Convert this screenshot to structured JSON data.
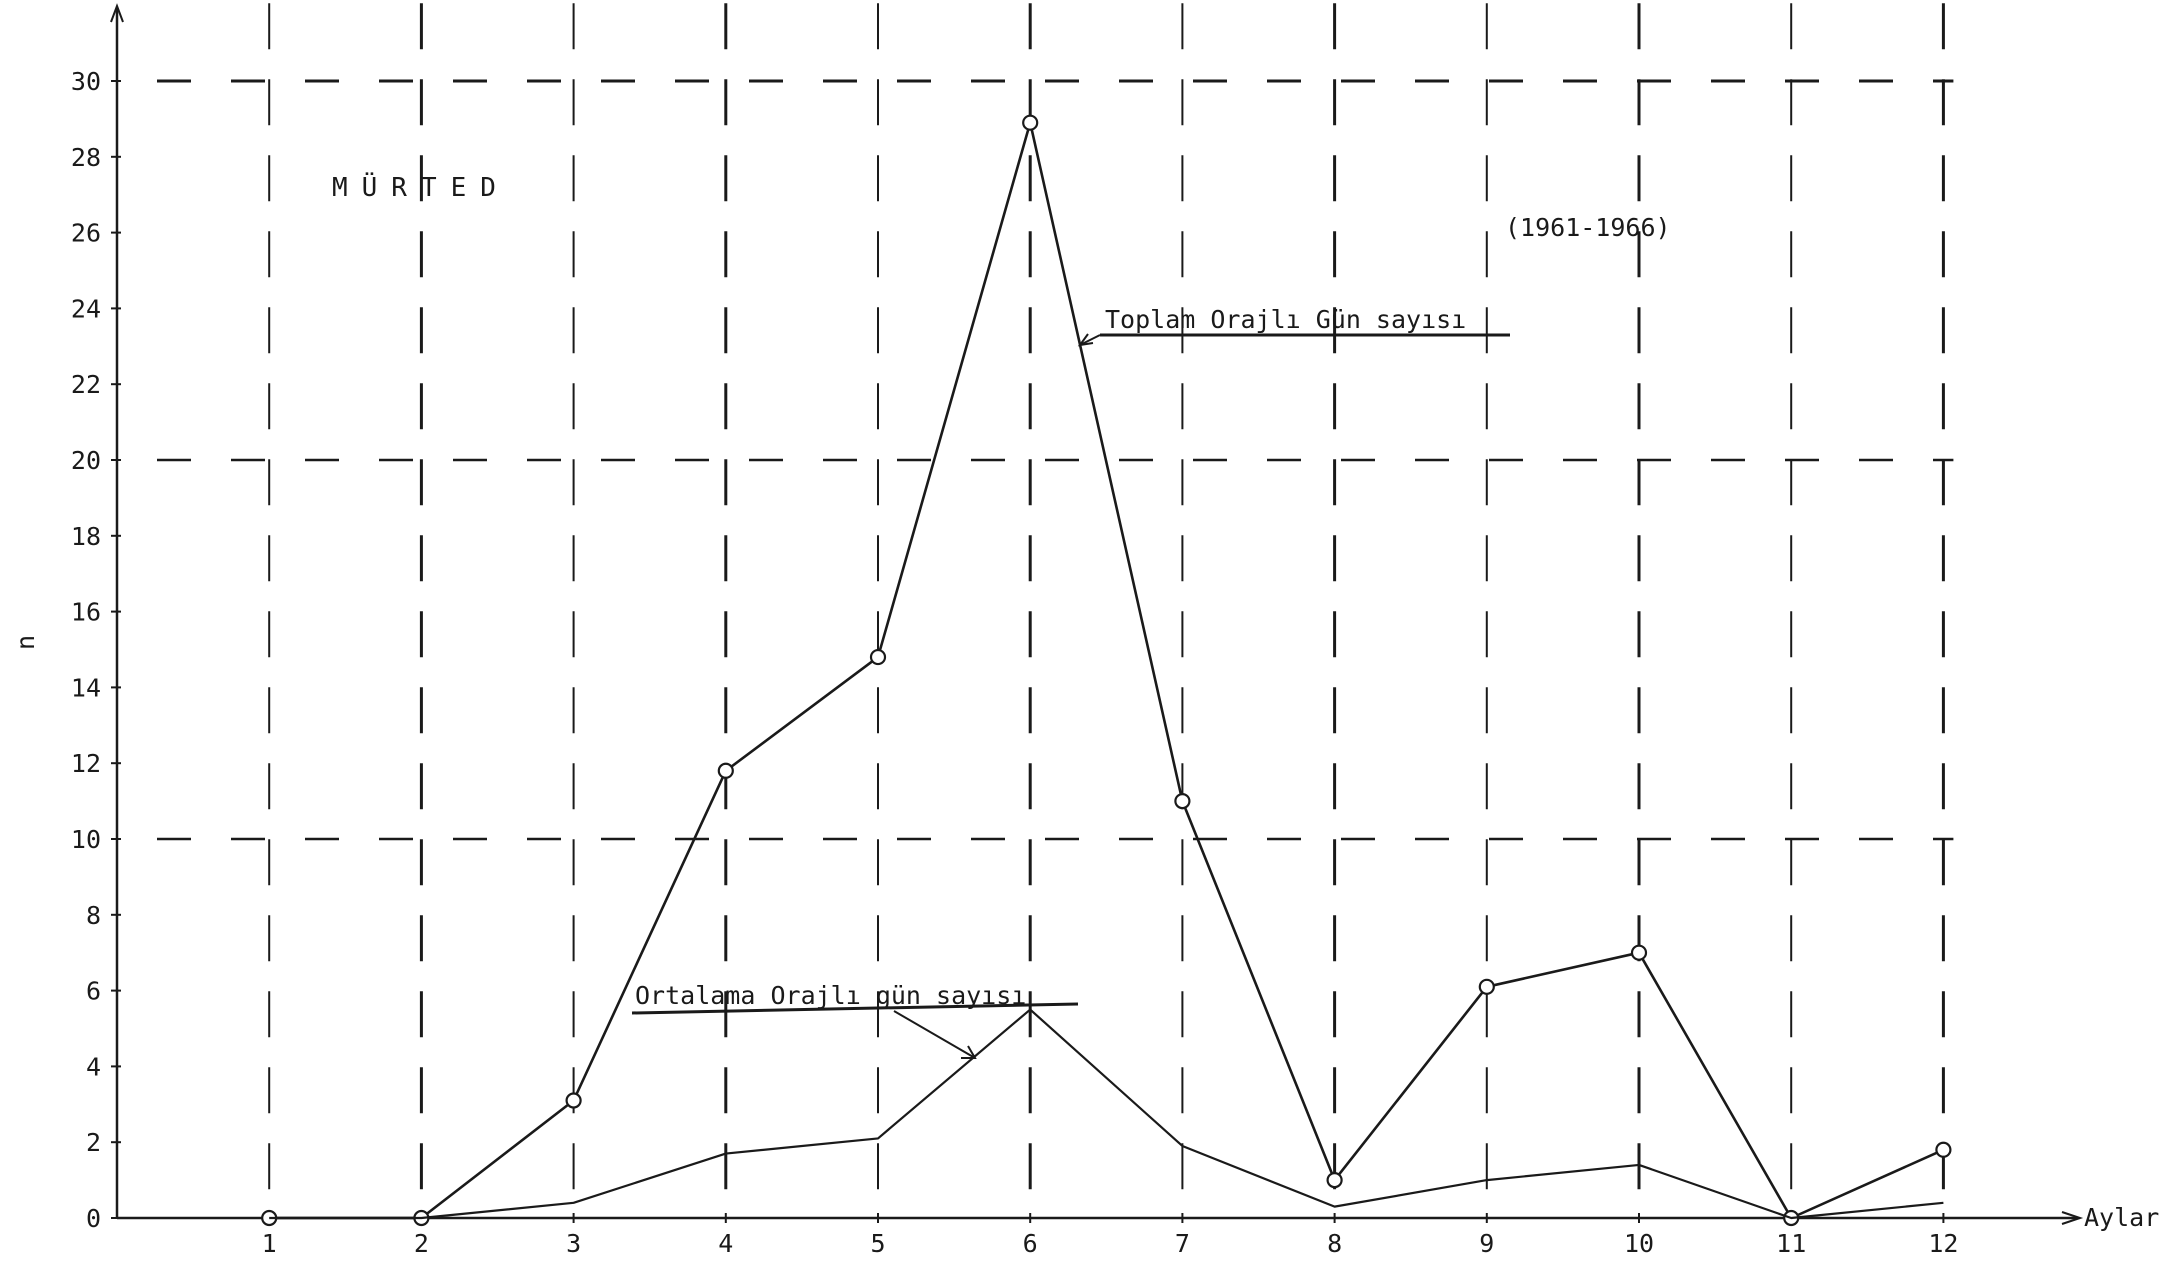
{
  "chart_data": {
    "type": "line",
    "title": "MÜRTED",
    "subtitle": "(1961-1966)",
    "xlabel": "Aylar",
    "ylabel": "n",
    "x": [
      1,
      2,
      3,
      4,
      5,
      6,
      7,
      8,
      9,
      10,
      11,
      12
    ],
    "x_tick_labels": [
      "1",
      "2",
      "3",
      "4",
      "5",
      "6",
      "7",
      "8",
      "9",
      "10",
      "11",
      "12"
    ],
    "y_ticks": [
      0,
      2,
      4,
      6,
      8,
      10,
      12,
      14,
      16,
      18,
      20,
      22,
      24,
      26,
      28,
      30
    ],
    "y_tick_labels": [
      "0",
      "2",
      "4",
      "6",
      "8",
      "10",
      "12",
      "14",
      "16",
      "18",
      "20",
      "22",
      "24",
      "26",
      "28",
      "30"
    ],
    "ylim": [
      0,
      32
    ],
    "xlim": [
      0,
      12
    ],
    "grid": "dashed",
    "series": [
      {
        "name": "Toplam Orajlı Gün sayısı",
        "values": [
          0,
          0,
          3.1,
          11.8,
          14.8,
          28.9,
          11.0,
          1.0,
          6.1,
          7.0,
          0,
          1.8
        ],
        "markers": "circle",
        "color": "#1a1a1a"
      },
      {
        "name": "Ortalama Orajlı gün sayısı",
        "values": [
          0,
          0,
          0.4,
          1.7,
          2.1,
          5.5,
          1.9,
          0.3,
          1.0,
          1.4,
          0,
          0.4
        ],
        "markers": "none",
        "color": "#1a1a1a"
      }
    ],
    "annotations": [
      {
        "text": "Toplam Orajlı Gün sayısı",
        "points_to_series": 0,
        "at_x": 6.4
      },
      {
        "text": "Ortalama Orajlı gün sayısı",
        "points_to_series": 1,
        "at_x": 5.7
      }
    ]
  }
}
